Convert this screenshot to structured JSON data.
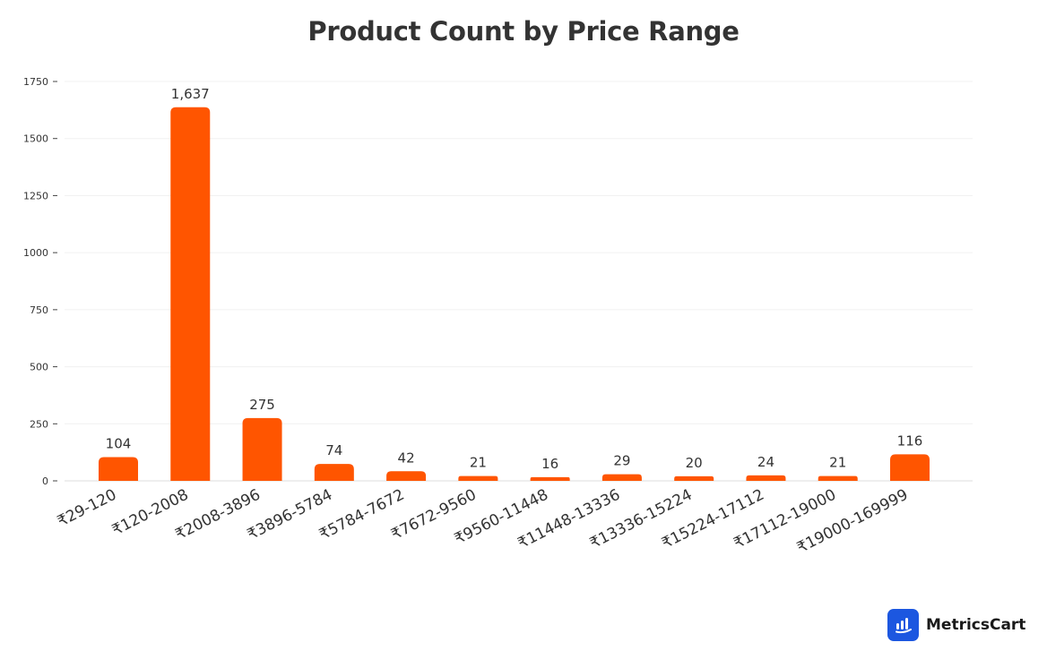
{
  "chart_data": {
    "type": "bar",
    "title": "Product Count by Price Range",
    "xlabel": "",
    "ylabel": "",
    "categories": [
      "₹29-120",
      "₹120-2008",
      "₹2008-3896",
      "₹3896-5784",
      "₹5784-7672",
      "₹7672-9560",
      "₹9560-11448",
      "₹11448-13336",
      "₹13336-15224",
      "₹15224-17112",
      "₹17112-19000",
      "₹19000-169999"
    ],
    "values": [
      104,
      1637,
      275,
      74,
      42,
      21,
      16,
      29,
      20,
      24,
      21,
      116
    ],
    "data_labels": [
      "104",
      "1,637",
      "275",
      "74",
      "42",
      "21",
      "16",
      "29",
      "20",
      "24",
      "21",
      "116"
    ],
    "ylim": [
      0,
      1750
    ],
    "yticks": [
      0,
      250,
      500,
      750,
      1000,
      1250,
      1500,
      1750
    ],
    "grid": true,
    "bar_color": "#ff5500"
  },
  "brand": {
    "name": "MetricsCart",
    "icon": "bar-chart-logo-icon",
    "color": "#1c57e0"
  }
}
